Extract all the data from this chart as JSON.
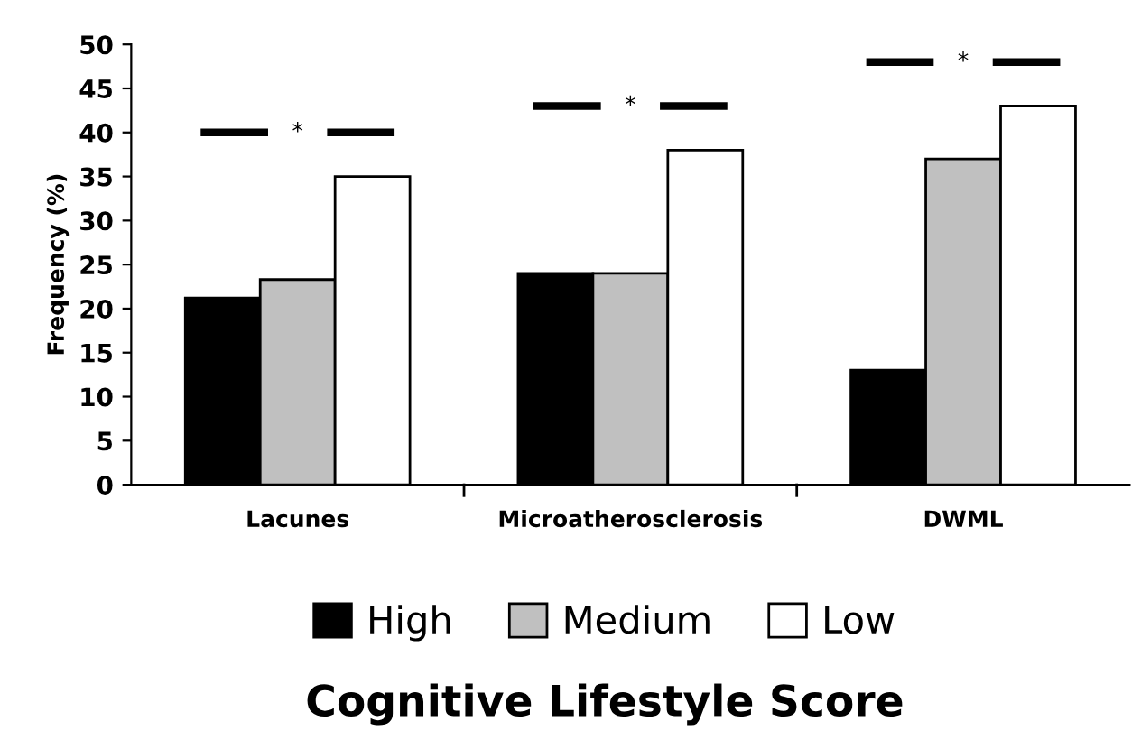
{
  "chart_data": {
    "type": "bar",
    "ylabel": "Frequency (%)",
    "legend_title": "Cognitive Lifestyle Score",
    "categories": [
      "Lacunes",
      "Microatherosclerosis",
      "DWML"
    ],
    "series": [
      {
        "name": "High",
        "color": "#000000",
        "values": [
          21.2,
          24,
          13
        ]
      },
      {
        "name": "Medium",
        "color": "#c0c0c0",
        "values": [
          23.3,
          24,
          37
        ]
      },
      {
        "name": "Low",
        "color": "#ffffff",
        "values": [
          35,
          38,
          43
        ]
      }
    ],
    "ylim": [
      0,
      50
    ],
    "yticks": [
      0,
      5,
      10,
      15,
      20,
      25,
      30,
      35,
      40,
      45,
      50
    ],
    "grid": false,
    "legend": "bottom",
    "annotations": [
      "*",
      "*",
      "*"
    ]
  }
}
